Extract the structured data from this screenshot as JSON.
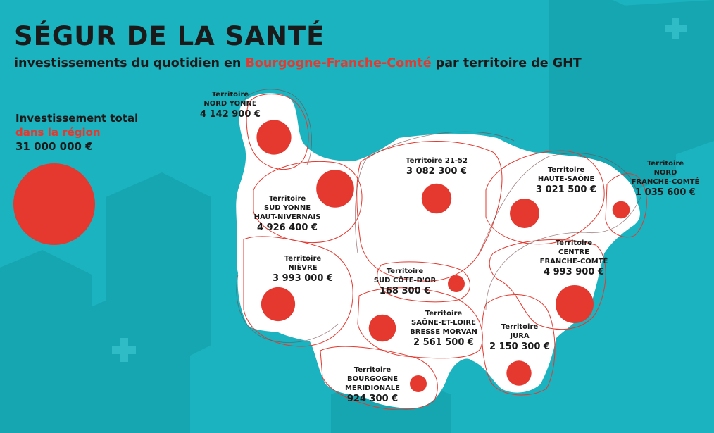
{
  "header": {
    "title": "SÉGUR DE LA SANTÉ",
    "subtitle_before": "investissements du quotidien en",
    "subtitle_region": "Bourgogne-Franche-Comté",
    "subtitle_after": "par territoire de GHT"
  },
  "total": {
    "line1": "Investissement total",
    "line2": "dans la région",
    "amount": "31 000 000 €",
    "amount_value": 31000000
  },
  "colors": {
    "background": "#1ab3bf",
    "accent": "#e5392f",
    "text": "#1a1a1a",
    "map": "#ffffff"
  },
  "territories": [
    {
      "id": "nord-yonne",
      "lines": [
        "Territoire",
        "NORD YONNE"
      ],
      "amount": "4 142 900 €",
      "value": 4142900
    },
    {
      "id": "sud-yonne",
      "lines": [
        "Territoire",
        "SUD YONNE",
        "HAUT-NIVERNAIS"
      ],
      "amount": "4 926 400 €",
      "value": 4926400
    },
    {
      "id": "21-52",
      "lines": [
        "Territoire 21-52"
      ],
      "amount": "3 082 300 €",
      "value": 3082300
    },
    {
      "id": "haute-saone",
      "lines": [
        "Territoire",
        "HAUTE-SAÔNE"
      ],
      "amount": "3 021 500 €",
      "value": 3021500
    },
    {
      "id": "nord-fc",
      "lines": [
        "Territoire",
        "NORD",
        "FRANCHE-COMTÉ"
      ],
      "amount": "1 035 600 €",
      "value": 1035600
    },
    {
      "id": "nievre",
      "lines": [
        "Territoire",
        "NIÈVRE"
      ],
      "amount": "3 993 000 €",
      "value": 3993000
    },
    {
      "id": "sud-cote-dor",
      "lines": [
        "Territoire",
        "SUD CÔTE-D'OR"
      ],
      "amount": "168 300 €",
      "value": 168300
    },
    {
      "id": "centre-fc",
      "lines": [
        "Territoire",
        "CENTRE",
        "FRANCHE-COMTÉ"
      ],
      "amount": "4 993 900 €",
      "value": 4993900
    },
    {
      "id": "saone-et-loire",
      "lines": [
        "Territoire",
        "SAÔNE-ET-LOIRE",
        "BRESSE MORVAN"
      ],
      "amount": "2 561 500 €",
      "value": 2561500
    },
    {
      "id": "jura",
      "lines": [
        "Territoire",
        "JURA"
      ],
      "amount": "2 150 300 €",
      "value": 2150300
    },
    {
      "id": "bourgogne-meridionale",
      "lines": [
        "Territoire",
        "BOURGOGNE",
        "MERIDIONALE"
      ],
      "amount": "924 300 €",
      "value": 924300
    }
  ]
}
